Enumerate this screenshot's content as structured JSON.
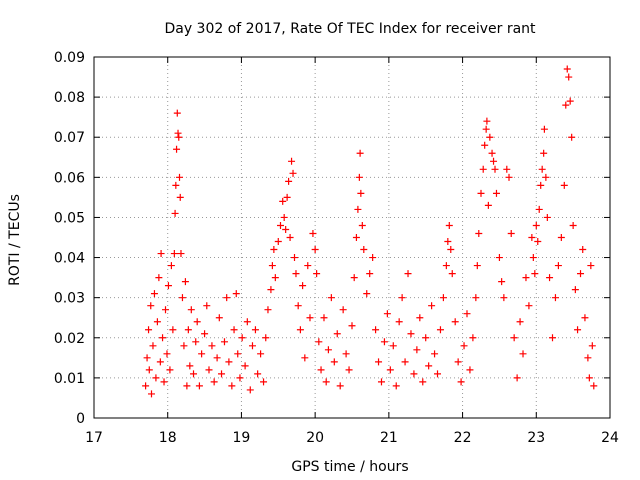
{
  "chart_data": {
    "type": "scatter",
    "title": "Day 302 of 2017, Rate Of TEC Index for receiver rant",
    "xlabel": "GPS time / hours",
    "ylabel": "ROTI / TECUs",
    "xlim": [
      17,
      24
    ],
    "ylim": [
      0,
      0.09
    ],
    "xticks": [
      17,
      18,
      19,
      20,
      21,
      22,
      23,
      24
    ],
    "xtick_labels": [
      "17",
      "18",
      "19",
      "20",
      "21",
      "22",
      "23",
      "24"
    ],
    "yticks": [
      0,
      0.01,
      0.02,
      0.03,
      0.04,
      0.05,
      0.06,
      0.07,
      0.08,
      0.09
    ],
    "ytick_labels": [
      "0",
      "0.01",
      "0.02",
      "0.03",
      "0.04",
      "0.05",
      "0.06",
      "0.07",
      "0.08",
      "0.09"
    ],
    "grid": true,
    "marker": "+",
    "series": [
      {
        "name": "ROTI",
        "color": "#ff0000",
        "points": [
          [
            17.7,
            0.008
          ],
          [
            17.72,
            0.015
          ],
          [
            17.74,
            0.022
          ],
          [
            17.75,
            0.012
          ],
          [
            17.77,
            0.028
          ],
          [
            17.78,
            0.006
          ],
          [
            17.8,
            0.018
          ],
          [
            17.82,
            0.031
          ],
          [
            17.84,
            0.01
          ],
          [
            17.86,
            0.024
          ],
          [
            17.88,
            0.035
          ],
          [
            17.9,
            0.014
          ],
          [
            17.91,
            0.041
          ],
          [
            17.93,
            0.02
          ],
          [
            17.95,
            0.009
          ],
          [
            17.97,
            0.027
          ],
          [
            17.99,
            0.016
          ],
          [
            18.01,
            0.033
          ],
          [
            18.03,
            0.012
          ],
          [
            18.05,
            0.038
          ],
          [
            18.07,
            0.022
          ],
          [
            18.09,
            0.041
          ],
          [
            18.1,
            0.051
          ],
          [
            18.11,
            0.058
          ],
          [
            18.12,
            0.067
          ],
          [
            18.13,
            0.076
          ],
          [
            18.14,
            0.071
          ],
          [
            18.15,
            0.07
          ],
          [
            18.16,
            0.06
          ],
          [
            18.17,
            0.055
          ],
          [
            18.18,
            0.041
          ],
          [
            18.2,
            0.03
          ],
          [
            18.22,
            0.018
          ],
          [
            18.24,
            0.034
          ],
          [
            18.26,
            0.008
          ],
          [
            18.28,
            0.022
          ],
          [
            18.3,
            0.013
          ],
          [
            18.32,
            0.027
          ],
          [
            18.35,
            0.011
          ],
          [
            18.38,
            0.019
          ],
          [
            18.4,
            0.024
          ],
          [
            18.43,
            0.008
          ],
          [
            18.46,
            0.016
          ],
          [
            18.5,
            0.021
          ],
          [
            18.53,
            0.028
          ],
          [
            18.56,
            0.012
          ],
          [
            18.6,
            0.018
          ],
          [
            18.63,
            0.009
          ],
          [
            18.67,
            0.015
          ],
          [
            18.7,
            0.025
          ],
          [
            18.73,
            0.011
          ],
          [
            18.77,
            0.019
          ],
          [
            18.8,
            0.03
          ],
          [
            18.83,
            0.014
          ],
          [
            18.87,
            0.008
          ],
          [
            18.9,
            0.022
          ],
          [
            18.93,
            0.031
          ],
          [
            18.95,
            0.016
          ],
          [
            18.98,
            0.01
          ],
          [
            19.01,
            0.02
          ],
          [
            19.05,
            0.013
          ],
          [
            19.08,
            0.024
          ],
          [
            19.12,
            0.007
          ],
          [
            19.15,
            0.018
          ],
          [
            19.19,
            0.022
          ],
          [
            19.22,
            0.011
          ],
          [
            19.26,
            0.016
          ],
          [
            19.3,
            0.009
          ],
          [
            19.33,
            0.02
          ],
          [
            19.36,
            0.027
          ],
          [
            19.4,
            0.032
          ],
          [
            19.42,
            0.038
          ],
          [
            19.44,
            0.042
          ],
          [
            19.46,
            0.035
          ],
          [
            19.5,
            0.044
          ],
          [
            19.53,
            0.048
          ],
          [
            19.56,
            0.054
          ],
          [
            19.58,
            0.05
          ],
          [
            19.6,
            0.047
          ],
          [
            19.62,
            0.055
          ],
          [
            19.64,
            0.059
          ],
          [
            19.66,
            0.045
          ],
          [
            19.68,
            0.064
          ],
          [
            19.7,
            0.061
          ],
          [
            19.72,
            0.04
          ],
          [
            19.74,
            0.036
          ],
          [
            19.77,
            0.028
          ],
          [
            19.8,
            0.022
          ],
          [
            19.83,
            0.033
          ],
          [
            19.86,
            0.015
          ],
          [
            19.9,
            0.038
          ],
          [
            19.93,
            0.025
          ],
          [
            19.97,
            0.046
          ],
          [
            20.0,
            0.042
          ],
          [
            20.02,
            0.036
          ],
          [
            20.05,
            0.019
          ],
          [
            20.08,
            0.012
          ],
          [
            20.12,
            0.025
          ],
          [
            20.15,
            0.009
          ],
          [
            20.18,
            0.017
          ],
          [
            20.22,
            0.03
          ],
          [
            20.26,
            0.014
          ],
          [
            20.3,
            0.021
          ],
          [
            20.34,
            0.008
          ],
          [
            20.38,
            0.027
          ],
          [
            20.42,
            0.016
          ],
          [
            20.46,
            0.012
          ],
          [
            20.5,
            0.023
          ],
          [
            20.53,
            0.035
          ],
          [
            20.56,
            0.045
          ],
          [
            20.58,
            0.052
          ],
          [
            20.6,
            0.06
          ],
          [
            20.61,
            0.066
          ],
          [
            20.62,
            0.056
          ],
          [
            20.64,
            0.048
          ],
          [
            20.66,
            0.042
          ],
          [
            20.7,
            0.031
          ],
          [
            20.74,
            0.036
          ],
          [
            20.78,
            0.04
          ],
          [
            20.82,
            0.022
          ],
          [
            20.86,
            0.014
          ],
          [
            20.9,
            0.009
          ],
          [
            20.94,
            0.019
          ],
          [
            20.98,
            0.026
          ],
          [
            21.02,
            0.012
          ],
          [
            21.06,
            0.018
          ],
          [
            21.1,
            0.008
          ],
          [
            21.14,
            0.024
          ],
          [
            21.18,
            0.03
          ],
          [
            21.22,
            0.014
          ],
          [
            21.26,
            0.036
          ],
          [
            21.3,
            0.021
          ],
          [
            21.34,
            0.011
          ],
          [
            21.38,
            0.017
          ],
          [
            21.42,
            0.025
          ],
          [
            21.46,
            0.009
          ],
          [
            21.5,
            0.02
          ],
          [
            21.54,
            0.013
          ],
          [
            21.58,
            0.028
          ],
          [
            21.62,
            0.016
          ],
          [
            21.66,
            0.011
          ],
          [
            21.7,
            0.022
          ],
          [
            21.74,
            0.03
          ],
          [
            21.78,
            0.038
          ],
          [
            21.8,
            0.044
          ],
          [
            21.82,
            0.048
          ],
          [
            21.84,
            0.042
          ],
          [
            21.86,
            0.036
          ],
          [
            21.9,
            0.024
          ],
          [
            21.94,
            0.014
          ],
          [
            21.98,
            0.009
          ],
          [
            22.02,
            0.018
          ],
          [
            22.06,
            0.026
          ],
          [
            22.1,
            0.012
          ],
          [
            22.14,
            0.02
          ],
          [
            22.18,
            0.03
          ],
          [
            22.2,
            0.038
          ],
          [
            22.22,
            0.046
          ],
          [
            22.25,
            0.056
          ],
          [
            22.28,
            0.062
          ],
          [
            22.3,
            0.068
          ],
          [
            22.32,
            0.072
          ],
          [
            22.33,
            0.074
          ],
          [
            22.35,
            0.053
          ],
          [
            22.37,
            0.07
          ],
          [
            22.4,
            0.066
          ],
          [
            22.42,
            0.064
          ],
          [
            22.44,
            0.062
          ],
          [
            22.46,
            0.056
          ],
          [
            22.5,
            0.04
          ],
          [
            22.53,
            0.034
          ],
          [
            22.56,
            0.03
          ],
          [
            22.6,
            0.062
          ],
          [
            22.63,
            0.06
          ],
          [
            22.66,
            0.046
          ],
          [
            22.7,
            0.02
          ],
          [
            22.74,
            0.01
          ],
          [
            22.78,
            0.024
          ],
          [
            22.82,
            0.016
          ],
          [
            22.86,
            0.035
          ],
          [
            22.9,
            0.028
          ],
          [
            22.94,
            0.045
          ],
          [
            22.96,
            0.04
          ],
          [
            22.98,
            0.036
          ],
          [
            23.0,
            0.048
          ],
          [
            23.02,
            0.044
          ],
          [
            23.04,
            0.052
          ],
          [
            23.06,
            0.058
          ],
          [
            23.08,
            0.062
          ],
          [
            23.1,
            0.066
          ],
          [
            23.11,
            0.072
          ],
          [
            23.13,
            0.06
          ],
          [
            23.15,
            0.05
          ],
          [
            23.18,
            0.035
          ],
          [
            23.22,
            0.02
          ],
          [
            23.26,
            0.03
          ],
          [
            23.3,
            0.038
          ],
          [
            23.34,
            0.045
          ],
          [
            23.38,
            0.058
          ],
          [
            23.4,
            0.078
          ],
          [
            23.42,
            0.087
          ],
          [
            23.44,
            0.085
          ],
          [
            23.46,
            0.079
          ],
          [
            23.48,
            0.07
          ],
          [
            23.5,
            0.048
          ],
          [
            23.53,
            0.032
          ],
          [
            23.56,
            0.022
          ],
          [
            23.6,
            0.036
          ],
          [
            23.63,
            0.042
          ],
          [
            23.66,
            0.025
          ],
          [
            23.7,
            0.015
          ],
          [
            23.72,
            0.01
          ],
          [
            23.74,
            0.038
          ],
          [
            23.76,
            0.018
          ],
          [
            23.78,
            0.008
          ]
        ]
      }
    ]
  }
}
